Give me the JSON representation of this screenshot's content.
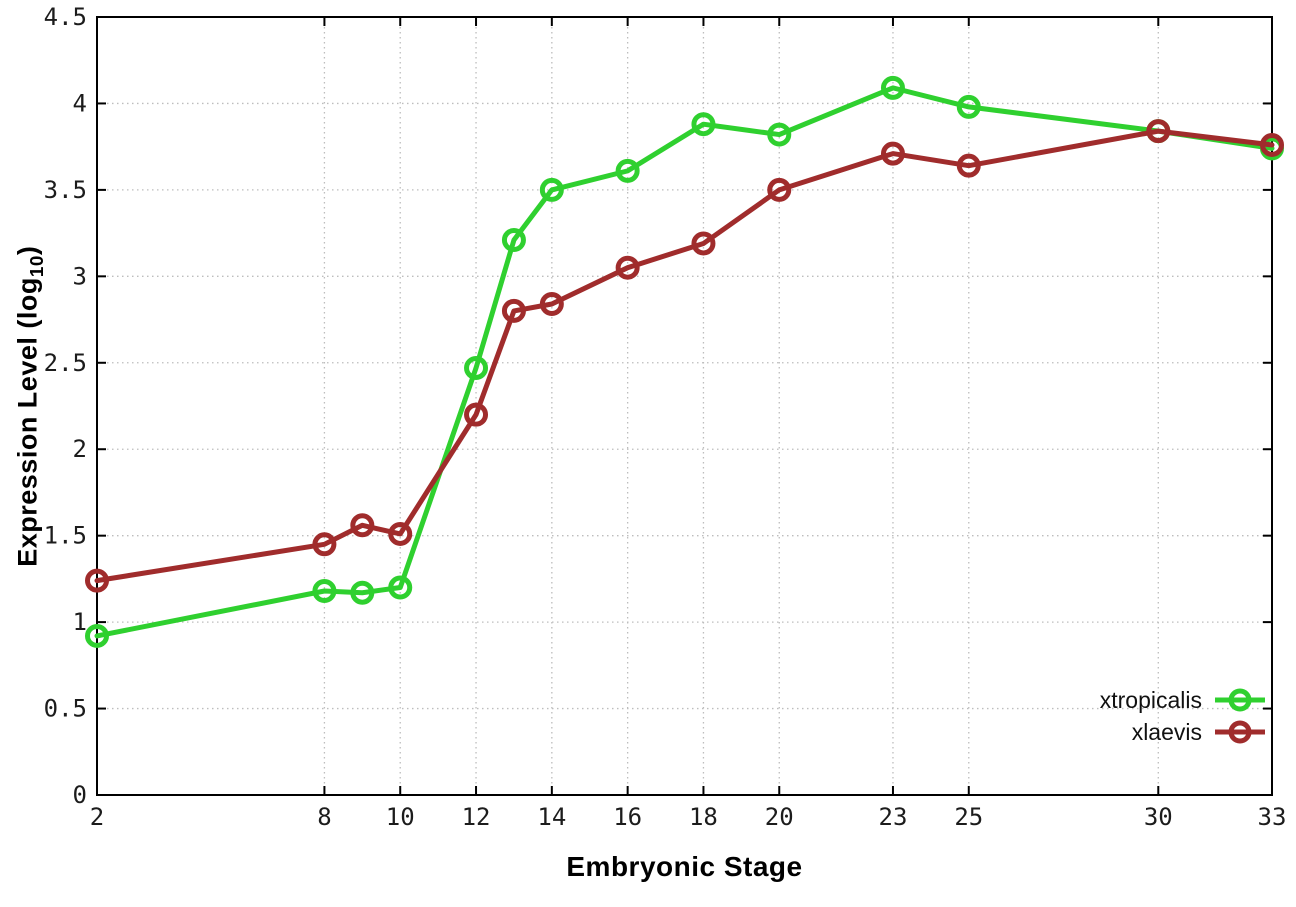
{
  "chart_data": {
    "type": "line",
    "x": [
      2,
      8,
      9,
      10,
      12,
      13,
      14,
      16,
      18,
      20,
      23,
      25,
      30,
      33
    ],
    "series": [
      {
        "name": "xtropicalis",
        "color": "#2fd02f",
        "values": [
          0.92,
          1.18,
          1.17,
          1.2,
          2.47,
          3.21,
          3.5,
          3.61,
          3.88,
          3.82,
          4.09,
          3.98,
          3.84,
          3.74
        ]
      },
      {
        "name": "xlaevis",
        "color": "#a02c2c",
        "values": [
          1.24,
          1.45,
          1.56,
          1.51,
          2.2,
          2.8,
          2.84,
          3.05,
          3.19,
          3.5,
          3.71,
          3.64,
          3.84,
          3.76
        ]
      }
    ],
    "title": "",
    "xlabel": "Embryonic Stage",
    "ylabel": "Expression Level (log10)",
    "ylabel_parts": {
      "base": "Expression Level (log",
      "sub": "10",
      "close": ")"
    },
    "xlim": [
      2,
      33
    ],
    "ylim": [
      0,
      4.5
    ],
    "xticks": [
      2,
      8,
      10,
      12,
      14,
      16,
      18,
      20,
      23,
      25,
      30,
      33
    ],
    "yticks": [
      0,
      0.5,
      1,
      1.5,
      2,
      2.5,
      3,
      3.5,
      4,
      4.5
    ],
    "grid": true,
    "legend_position": "bottom-right"
  }
}
